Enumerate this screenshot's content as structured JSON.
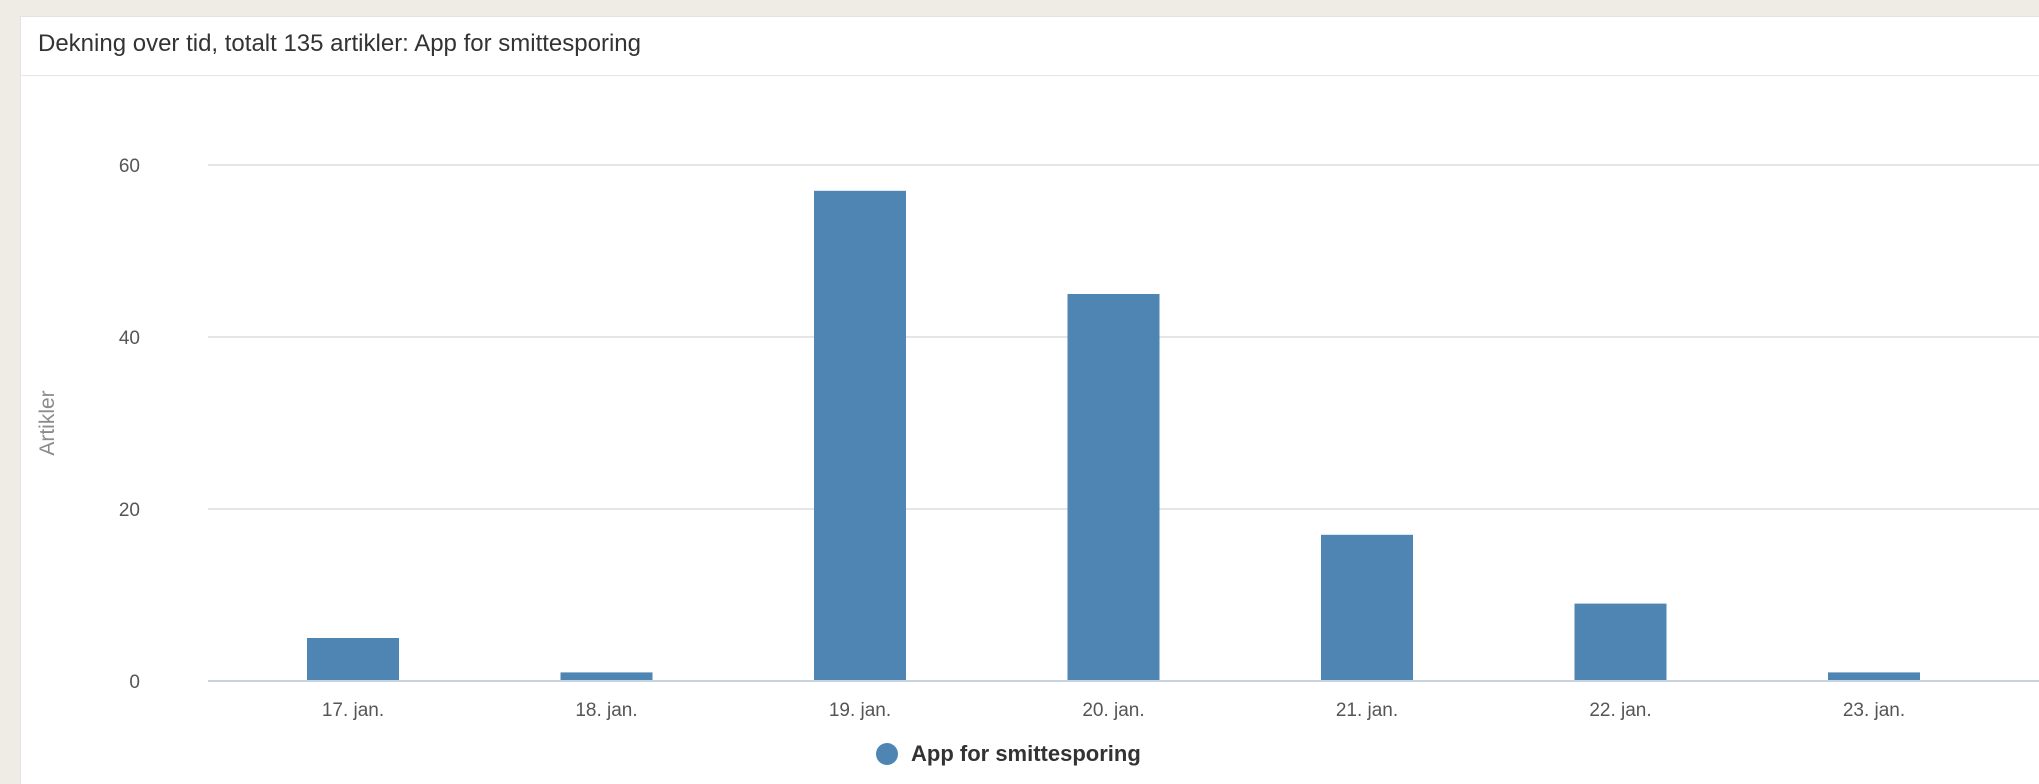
{
  "panel": {
    "title": "Dekning over tid, totalt 135 artikler: App for smittesporing"
  },
  "colors": {
    "bar": "#4e85b2",
    "grid": "#d9dde2",
    "axis_line": "#c6d2df",
    "tick_text": "#555555",
    "axis_title_text": "#8c8c8c",
    "background": "#efece6"
  },
  "chart_data": {
    "type": "bar",
    "categories": [
      "17. jan.",
      "18. jan.",
      "19. jan.",
      "20. jan.",
      "21. jan.",
      "22. jan.",
      "23. jan."
    ],
    "series": [
      {
        "name": "App for smittesporing",
        "values": [
          5,
          1,
          57,
          45,
          17,
          9,
          1
        ]
      }
    ],
    "ylabel": "Artikler",
    "xlabel": "",
    "ylim": [
      0,
      60
    ],
    "yticks": [
      0,
      20,
      40,
      60
    ],
    "grid": true,
    "legend": "bottom-center"
  }
}
